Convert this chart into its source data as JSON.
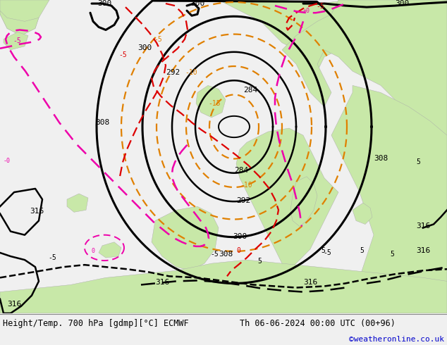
{
  "title_left": "Height/Temp. 700 hPa [gdmp][°C] ECMWF",
  "title_right": "Th 06-06-2024 00:00 UTC (00+96)",
  "watermark": "©weatheronline.co.uk",
  "bg_ocean": "#e8e8e8",
  "bg_land_light": "#c8e8b0",
  "bg_land_dark": "#a8d890",
  "bottom_bar_color": "#f0f0f0",
  "text_color": "#000000",
  "watermark_color": "#0000cc",
  "figsize": [
    6.34,
    4.9
  ],
  "dpi": 100
}
